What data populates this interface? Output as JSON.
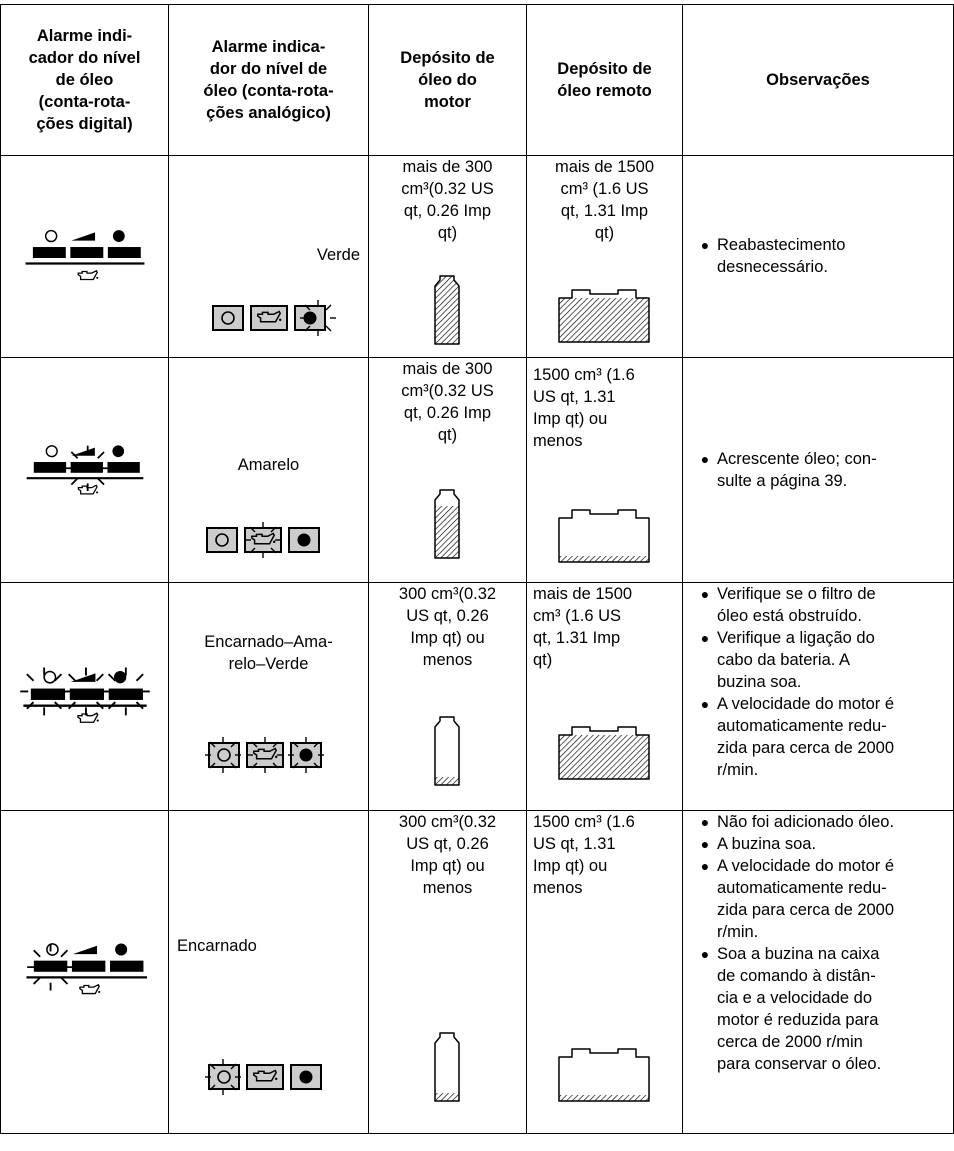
{
  "table": {
    "header": [
      [
        "Alarme indi-",
        "cador do nível",
        "de óleo",
        "(conta-rota-",
        "ções digital)"
      ],
      [
        "Alarme indica-",
        "dor do nível de",
        "óleo (conta-rota-",
        "ções analógico)"
      ],
      [
        "Depósito de",
        "óleo do",
        "motor"
      ],
      [
        "Depósito de",
        "óleo remoto"
      ],
      [
        "Observações"
      ]
    ],
    "rows": [
      {
        "color": [
          "Verde"
        ],
        "engine": [
          "mais de 300",
          "cm³(0.32 US",
          "qt, 0.26 Imp",
          "qt)"
        ],
        "remote": [
          "mais de 1500",
          "cm³ (1.6 US",
          "qt, 1.31 Imp",
          "qt)"
        ],
        "notes": [
          [
            "Reabastecimento",
            "desnecessário."
          ]
        ]
      },
      {
        "color": [
          "Amarelo"
        ],
        "engine": [
          "mais de 300",
          "cm³(0.32 US",
          "qt, 0.26 Imp",
          "qt)"
        ],
        "remote": [
          "1500 cm³ (1.6",
          "US qt, 1.31",
          "Imp qt) ou",
          "menos"
        ],
        "notes": [
          [
            "Acrescente óleo; con-",
            "sulte a página 39."
          ]
        ]
      },
      {
        "color": [
          "Encarnado–Ama-",
          "relo–Verde"
        ],
        "engine": [
          "300 cm³(0.32",
          "US qt, 0.26",
          "Imp qt) ou",
          "menos"
        ],
        "remote": [
          "mais de 1500",
          "cm³ (1.6 US",
          "qt, 1.31 Imp",
          "qt)"
        ],
        "notes": [
          [
            "Verifique se o filtro de",
            "óleo está obstruído."
          ],
          [
            "Verifique a ligação do",
            "cabo da bateria. A",
            "buzina soa."
          ],
          [
            "A velocidade do motor é",
            "automaticamente redu-",
            "zida para cerca de 2000",
            "r/min."
          ]
        ]
      },
      {
        "color": [
          "Encarnado"
        ],
        "engine": [
          "300 cm³(0.32",
          "US qt, 0.26",
          "Imp qt) ou",
          "menos"
        ],
        "remote": [
          "1500 cm³ (1.6",
          "US qt, 1.31",
          "Imp qt) ou",
          "menos"
        ],
        "notes": [
          [
            "Não foi adicionado óleo."
          ],
          [
            "A buzina soa."
          ],
          [
            "A velocidade do motor é",
            "automaticamente redu-",
            "zida para cerca de 2000",
            "r/min."
          ],
          [
            "Soa a buzina na caixa",
            "de comando à distân-",
            "cia e a velocidade do",
            "motor é reduzida para",
            "cerca de 2000 r/min",
            "para conservar o óleo."
          ]
        ]
      }
    ]
  }
}
